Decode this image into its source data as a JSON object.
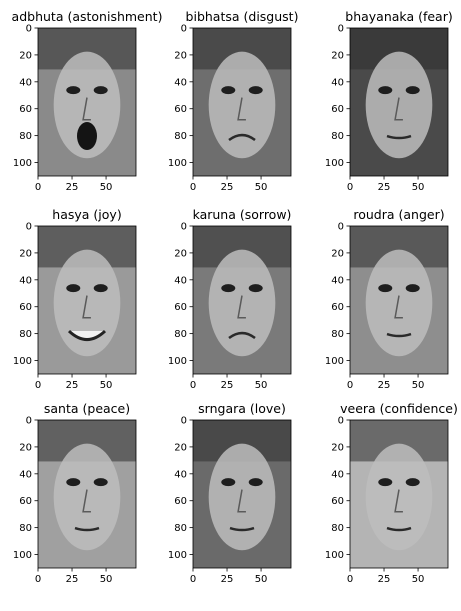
{
  "panels": [
    {
      "title": "adbhuta (astonishment)",
      "face": "face-astonishment",
      "tone": "#8a8a8a"
    },
    {
      "title": "bibhatsa (disgust)",
      "face": "face-disgust",
      "tone": "#6e6e6e"
    },
    {
      "title": "bhayanaka (fear)",
      "face": "face-fear",
      "tone": "#4a4a4a"
    },
    {
      "title": "hasya (joy)",
      "face": "face-joy",
      "tone": "#9a9a9a"
    },
    {
      "title": "karuna (sorrow)",
      "face": "face-sorrow",
      "tone": "#7a7a7a"
    },
    {
      "title": "roudra (anger)",
      "face": "face-anger",
      "tone": "#8e8e8e"
    },
    {
      "title": "santa (peace)",
      "face": "face-peace",
      "tone": "#a0a0a0"
    },
    {
      "title": "srngara (love)",
      "face": "face-love",
      "tone": "#6a6a6a"
    },
    {
      "title": "veera (confidence)",
      "face": "face-confidence",
      "tone": "#b4b4b4"
    }
  ],
  "axes": {
    "x_ticks": [
      "0",
      "25",
      "50"
    ],
    "y_ticks": [
      "0",
      "20",
      "40",
      "60",
      "80",
      "100"
    ]
  }
}
